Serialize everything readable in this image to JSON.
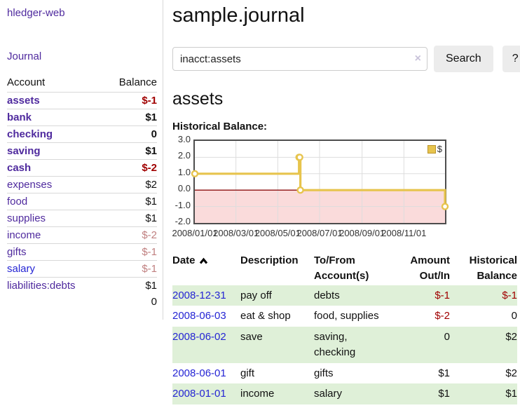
{
  "colors": {
    "link-purple": "#4f2a9e",
    "link-blue": "#2525d4",
    "negative": "#a00000",
    "negative-muted": "#c08080",
    "row-green": "#dff0d8",
    "gold": "#e7c44d",
    "gold-dark": "#bb942c",
    "pink-fill": "#fadbdb",
    "zero-line": "#8c0f0f",
    "grid": "#dddddd",
    "chart-border": "#4d4d4d",
    "button-bg": "#ececec",
    "input-border": "#cccccc",
    "divider": "#d8d8d8"
  },
  "app": {
    "brand": "hledger-web",
    "nav_journal": "Journal"
  },
  "sidebar": {
    "columns": {
      "account": "Account",
      "balance": "Balance"
    },
    "accounts": [
      {
        "label": "assets",
        "balance": "$-1",
        "level": 0,
        "bold": true,
        "balance_class": "neg",
        "link_class": ""
      },
      {
        "label": "bank",
        "balance": "$1",
        "level": 1,
        "bold": true,
        "balance_class": "",
        "link_class": ""
      },
      {
        "label": "checking",
        "balance": "0",
        "level": 2,
        "bold": true,
        "balance_class": "",
        "link_class": ""
      },
      {
        "label": "saving",
        "balance": "$1",
        "level": 2,
        "bold": true,
        "balance_class": "",
        "link_class": ""
      },
      {
        "label": "cash",
        "balance": "$-2",
        "level": 1,
        "bold": true,
        "balance_class": "neg",
        "link_class": ""
      },
      {
        "label": "expenses",
        "balance": "$2",
        "level": 0,
        "bold": false,
        "balance_class": "",
        "link_class": ""
      },
      {
        "label": "food",
        "balance": "$1",
        "level": 1,
        "bold": false,
        "balance_class": "",
        "link_class": ""
      },
      {
        "label": "supplies",
        "balance": "$1",
        "level": 1,
        "bold": false,
        "balance_class": "",
        "link_class": ""
      },
      {
        "label": "income",
        "balance": "$-2",
        "level": 0,
        "bold": false,
        "balance_class": "muted",
        "link_class": ""
      },
      {
        "label": "gifts",
        "balance": "$-1",
        "level": 1,
        "bold": false,
        "balance_class": "muted",
        "link_class": ""
      },
      {
        "label": "salary",
        "balance": "$-1",
        "level": 1,
        "bold": false,
        "balance_class": "muted",
        "link_class": "blue"
      },
      {
        "label": "liabilities:debts",
        "balance": "$1",
        "level": 0,
        "bold": false,
        "balance_class": "",
        "link_class": ""
      }
    ],
    "total": "0"
  },
  "header": {
    "title": "sample.journal"
  },
  "search": {
    "value": "inacct:assets",
    "clear_icon": "×",
    "search_label": "Search",
    "help_label": "?"
  },
  "account_page": {
    "heading": "assets",
    "chart_label": "Historical Balance:"
  },
  "chart_data": {
    "type": "line",
    "style": "step-after",
    "title": "Historical Balance:",
    "series": [
      {
        "name": "$",
        "points": [
          {
            "date": "2008-01-01",
            "value": 1
          },
          {
            "date": "2008-06-01",
            "value": 2
          },
          {
            "date": "2008-06-02",
            "value": 2
          },
          {
            "date": "2008-06-03",
            "value": 0
          },
          {
            "date": "2008-12-31",
            "value": -1
          }
        ]
      }
    ],
    "x_range": [
      "2008-01-01",
      "2008-12-31"
    ],
    "ylim": [
      -2,
      3
    ],
    "ytick_labels": [
      "3.0",
      "2.0",
      "1.0",
      "0.0",
      "-1.0",
      "-2.0"
    ],
    "xtick_labels": [
      "2008/01/01",
      "2008/03/01",
      "2008/05/01",
      "2008/07/01",
      "2008/09/01",
      "2008/11/01"
    ],
    "legend": {
      "position": "top-right",
      "entries": [
        "$"
      ]
    },
    "grid": true,
    "negative_region": true
  },
  "register": {
    "columns": {
      "date": "Date",
      "description": "Description",
      "tofrom_line1": "To/From",
      "tofrom_line2": "Account(s)",
      "amount_line1": "Amount",
      "amount_line2": "Out/In",
      "hist_line1": "Historical",
      "hist_line2": "Balance"
    },
    "rows": [
      {
        "date": "2008-12-31",
        "description": "pay off",
        "accounts": "debts",
        "amount": "$-1",
        "balance": "$-1",
        "amount_neg": true,
        "balance_neg": true,
        "shaded": true
      },
      {
        "date": "2008-06-03",
        "description": "eat & shop",
        "accounts": "food, supplies",
        "amount": "$-2",
        "balance": "0",
        "amount_neg": true,
        "balance_neg": false,
        "shaded": false
      },
      {
        "date": "2008-06-02",
        "description": "save",
        "accounts": "saving, checking",
        "amount": "0",
        "balance": "$2",
        "amount_neg": false,
        "balance_neg": false,
        "shaded": true
      },
      {
        "date": "2008-06-01",
        "description": "gift",
        "accounts": "gifts",
        "amount": "$1",
        "balance": "$2",
        "amount_neg": false,
        "balance_neg": false,
        "shaded": false
      },
      {
        "date": "2008-01-01",
        "description": "income",
        "accounts": "salary",
        "amount": "$1",
        "balance": "$1",
        "amount_neg": false,
        "balance_neg": false,
        "shaded": true
      }
    ]
  }
}
